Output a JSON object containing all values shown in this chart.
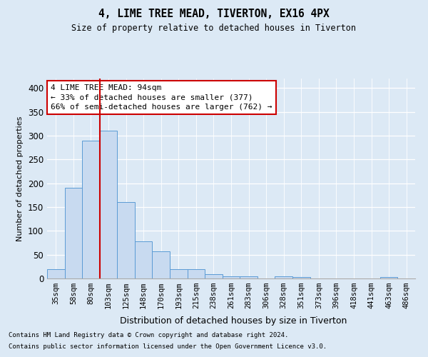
{
  "title": "4, LIME TREE MEAD, TIVERTON, EX16 4PX",
  "subtitle": "Size of property relative to detached houses in Tiverton",
  "xlabel": "Distribution of detached houses by size in Tiverton",
  "ylabel": "Number of detached properties",
  "categories": [
    "35sqm",
    "58sqm",
    "80sqm",
    "103sqm",
    "125sqm",
    "148sqm",
    "170sqm",
    "193sqm",
    "215sqm",
    "238sqm",
    "261sqm",
    "283sqm",
    "306sqm",
    "328sqm",
    "351sqm",
    "373sqm",
    "396sqm",
    "418sqm",
    "441sqm",
    "463sqm",
    "486sqm"
  ],
  "values": [
    20,
    190,
    290,
    310,
    160,
    78,
    57,
    19,
    19,
    9,
    5,
    5,
    0,
    5,
    3,
    0,
    0,
    0,
    0,
    3,
    0
  ],
  "bar_color": "#c8daf0",
  "bar_edge_color": "#5b9bd5",
  "vline_x": 2.5,
  "vline_color": "#cc0000",
  "annotation_text": "4 LIME TREE MEAD: 94sqm\n← 33% of detached houses are smaller (377)\n66% of semi-detached houses are larger (762) →",
  "annotation_box_color": "#ffffff",
  "annotation_box_edge_color": "#cc0000",
  "ylim": [
    0,
    420
  ],
  "yticks": [
    0,
    50,
    100,
    150,
    200,
    250,
    300,
    350,
    400
  ],
  "footer1": "Contains HM Land Registry data © Crown copyright and database right 2024.",
  "footer2": "Contains public sector information licensed under the Open Government Licence v3.0.",
  "bg_color": "#dce9f5",
  "plot_bg_color": "#dce9f5"
}
